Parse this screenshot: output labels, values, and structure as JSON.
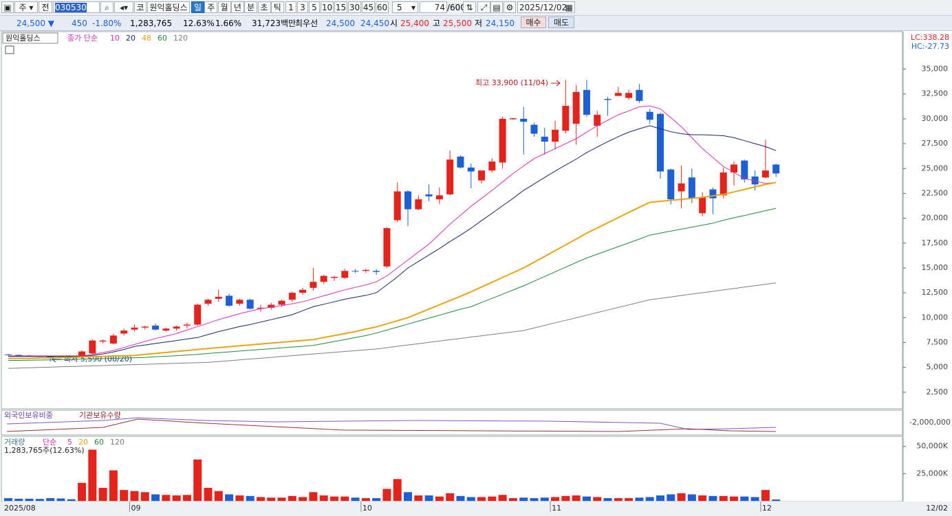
{
  "toolbar": {
    "market": "주",
    "prev": "전",
    "code": "030530",
    "exchange": "코",
    "name": "원익홀딩스",
    "periods": [
      "일",
      "주",
      "월",
      "년",
      "분",
      "초",
      "틱"
    ],
    "minutes": [
      "1",
      "3",
      "5",
      "10",
      "15",
      "30",
      "45",
      "60"
    ],
    "unit": "5",
    "count": "74",
    "count_max": "/600",
    "date": "2025/12/02"
  },
  "quote": {
    "price": "24,500 ▼",
    "change": "450",
    "change_pct": "-1.80%",
    "volume": "1,283,765",
    "turnover_pct": "12.63%",
    "ratio": "1.66%",
    "amount": "31,723백만",
    "best_label": "최우선",
    "best_ask": "24,500",
    "best_bid": "24,450",
    "open_label": "시",
    "open": "25,400",
    "high_label": "고",
    "high": "25,500",
    "low_label": "저",
    "low": "24,150",
    "buy": "매수",
    "sell": "매도"
  },
  "chart_data": [
    {
      "type": "candlestick",
      "title": "원익홀딩스",
      "lc": "LC:338.28",
      "hc": "HC:-27.73",
      "up_color": "#e5231b",
      "down_color": "#1c5fd6",
      "categories": [
        "2025/08",
        null,
        null,
        null,
        null,
        null,
        null,
        null,
        null,
        null,
        null,
        null,
        "09",
        null,
        null,
        null,
        null,
        null,
        null,
        null,
        null,
        null,
        null,
        null,
        null,
        null,
        null,
        null,
        null,
        null,
        null,
        null,
        null,
        null,
        "10",
        null,
        null,
        null,
        null,
        null,
        null,
        null,
        null,
        null,
        null,
        null,
        null,
        null,
        null,
        null,
        null,
        null,
        "11",
        null,
        null,
        null,
        null,
        null,
        null,
        null,
        null,
        null,
        null,
        null,
        null,
        null,
        null,
        null,
        null,
        null,
        null,
        null,
        "12",
        null
      ],
      "end_date": "12/02",
      "open": [
        6300,
        6250,
        6200,
        6150,
        6100,
        6100,
        6100,
        6100,
        6400,
        7600,
        7400,
        8400,
        8800,
        9000,
        9200,
        8700,
        8900,
        9200,
        9300,
        11400,
        11900,
        12200,
        11400,
        11800,
        10900,
        11000,
        11300,
        11800,
        12500,
        13000,
        13600,
        14000,
        14000,
        14700,
        14700,
        14700,
        15150,
        19800,
        22700,
        20900,
        22400,
        21900,
        22400,
        26200,
        25100,
        23800,
        24800,
        25600,
        29950,
        30000,
        29400,
        28200,
        27700,
        28800,
        29500,
        32900,
        29300,
        32000,
        32300,
        32100,
        32900,
        30700,
        30500,
        24900,
        22700,
        24100,
        20500,
        22900,
        22300,
        24600,
        25800,
        24200,
        24100,
        25400
      ],
      "high": [
        6350,
        6300,
        6250,
        6200,
        6150,
        6150,
        6150,
        6700,
        7800,
        7800,
        8400,
        8900,
        9300,
        9200,
        9400,
        9000,
        9200,
        9500,
        11400,
        11900,
        12800,
        12400,
        11900,
        11900,
        11300,
        11500,
        11800,
        12600,
        13000,
        15000,
        14300,
        14200,
        14900,
        14900,
        14900,
        14900,
        19100,
        23600,
        22800,
        22300,
        23400,
        23100,
        26800,
        26300,
        25500,
        24800,
        26000,
        30200,
        30100,
        31200,
        29600,
        29100,
        29800,
        33900,
        33400,
        33900,
        30800,
        32200,
        33200,
        32900,
        33500,
        31000,
        30600,
        25000,
        25300,
        25000,
        22600,
        23100,
        25100,
        25700,
        25900,
        24800,
        27900,
        25500
      ],
      "low": [
        6200,
        6150,
        6100,
        6050,
        5590,
        5900,
        5950,
        6000,
        6300,
        7400,
        7300,
        8200,
        8600,
        8800,
        8700,
        8600,
        8700,
        8900,
        9200,
        11200,
        11600,
        11100,
        11200,
        10800,
        10600,
        10800,
        11100,
        11600,
        12300,
        12700,
        13400,
        13700,
        13900,
        14500,
        14500,
        14300,
        15000,
        19600,
        19200,
        20800,
        21700,
        21400,
        22300,
        25000,
        23000,
        23500,
        24600,
        25000,
        29900,
        26400,
        28200,
        26400,
        26900,
        28500,
        27400,
        30200,
        28200,
        30300,
        32300,
        31900,
        31600,
        29500,
        24000,
        21400,
        21000,
        21500,
        20200,
        20400,
        22000,
        23300,
        23600,
        22800,
        24000,
        24150
      ],
      "close": [
        6250,
        6200,
        6150,
        6100,
        6000,
        6050,
        6050,
        6600,
        7700,
        7700,
        8200,
        8700,
        9000,
        9100,
        8800,
        8900,
        9100,
        9300,
        11300,
        11800,
        12100,
        11200,
        11800,
        10900,
        11000,
        11300,
        11700,
        12500,
        12800,
        13600,
        14200,
        14100,
        14700,
        14650,
        14800,
        14600,
        19000,
        22700,
        20900,
        21900,
        22200,
        22300,
        25900,
        25100,
        24700,
        24800,
        25700,
        30000,
        30050,
        29700,
        28500,
        27700,
        28900,
        31300,
        32700,
        30400,
        30400,
        31900,
        32600,
        32600,
        31800,
        29900,
        24700,
        21900,
        23500,
        22000,
        22100,
        22000,
        24600,
        25400,
        23900,
        23400,
        24800,
        24500
      ],
      "ylim": [
        900,
        38700
      ],
      "yticks": [
        {
          "value": 2500,
          "label": "2,500"
        },
        {
          "value": 5000,
          "label": "5,000"
        },
        {
          "value": 7500,
          "label": "7,500"
        },
        {
          "value": 10000,
          "label": "10,000"
        },
        {
          "value": 12500,
          "label": "12,500"
        },
        {
          "value": 15000,
          "label": "15,000"
        },
        {
          "value": 17500,
          "label": "17,500"
        },
        {
          "value": 20000,
          "label": "20,000"
        },
        {
          "value": 22500,
          "label": "22,500"
        },
        {
          "value": 25000,
          "label": "25,000"
        },
        {
          "value": 27500,
          "label": "27,500"
        },
        {
          "value": 30000,
          "label": "30,000"
        },
        {
          "value": 32500,
          "label": "32,500"
        },
        {
          "value": 35000,
          "label": "35,000"
        }
      ],
      "lines_label": "종가 단순",
      "series": [
        {
          "name": "10",
          "color": "#d630b4",
          "values": [
            6150,
            6150,
            6150,
            6150,
            6150,
            6150,
            6150,
            6150,
            6300,
            6500,
            6700,
            7000,
            7300,
            7600,
            7900,
            8150,
            8400,
            8750,
            9100,
            9450,
            9800,
            10100,
            10400,
            10650,
            10900,
            11050,
            11200,
            11400,
            11600,
            11900,
            12200,
            12500,
            12800,
            13050,
            13300,
            13600,
            14200,
            15000,
            15800,
            16600,
            17400,
            18400,
            19400,
            20300,
            21200,
            22000,
            22800,
            23650,
            24500,
            25250,
            26000,
            26500,
            27000,
            27500,
            28000,
            28650,
            29300,
            29850,
            30400,
            30800,
            31200,
            31300,
            31000,
            30100,
            29200,
            28100,
            27000,
            26100,
            25200,
            24600,
            24000,
            23750,
            23500,
            23600
          ]
        },
        {
          "name": "20",
          "color": "#17246e",
          "values": [
            6100,
            6100,
            6100,
            6100,
            6100,
            6100,
            6100,
            6100,
            6200,
            6350,
            6550,
            6800,
            7100,
            7250,
            7400,
            7550,
            7700,
            7850,
            8000,
            8300,
            8600,
            8850,
            9100,
            9300,
            9550,
            9800,
            10050,
            10300,
            10700,
            11100,
            11350,
            11600,
            11850,
            12050,
            12250,
            12500,
            13300,
            14100,
            15000,
            15650,
            16300,
            16950,
            17650,
            18300,
            19000,
            19750,
            20500,
            21250,
            22000,
            22800,
            23450,
            24100,
            24750,
            25350,
            25950,
            26600,
            27150,
            27700,
            28200,
            28650,
            29000,
            29300,
            29000,
            28700,
            28500,
            28400,
            28400,
            28350,
            28300,
            28100,
            27800,
            27500,
            27200,
            26800
          ]
        },
        {
          "name": "48",
          "color": "#e8a512",
          "values": [
            5900,
            5900,
            5900,
            5950,
            5950,
            6000,
            6000,
            6050,
            6100,
            6100,
            6150,
            6150,
            6200,
            6300,
            6400,
            6500,
            6600,
            6700,
            6800,
            6900,
            6990,
            7080,
            7170,
            7260,
            7350,
            7440,
            7530,
            7620,
            7710,
            7800,
            8000,
            8200,
            8400,
            8600,
            8850,
            9070,
            9380,
            9690,
            10000,
            10430,
            10860,
            11290,
            11720,
            12150,
            12600,
            13080,
            13560,
            14040,
            14520,
            15000,
            15580,
            16160,
            16740,
            17320,
            17900,
            18500,
            19020,
            19540,
            20060,
            20580,
            21100,
            21600,
            21700,
            21800,
            21900,
            22000,
            22100,
            22250,
            22400,
            22650,
            22900,
            23150,
            23400,
            23600
          ]
        },
        {
          "name": "60",
          "color": "#1f8a3c",
          "values": [
            5700,
            5700,
            5720,
            5740,
            5760,
            5780,
            5800,
            5820,
            5850,
            5880,
            5910,
            5940,
            5970,
            6000,
            6060,
            6120,
            6180,
            6240,
            6300,
            6400,
            6480,
            6560,
            6640,
            6720,
            6800,
            6880,
            6960,
            7040,
            7120,
            7200,
            7400,
            7600,
            7800,
            8000,
            8200,
            8450,
            8750,
            9050,
            9350,
            9650,
            9950,
            10250,
            10550,
            10850,
            11100,
            11520,
            11940,
            12360,
            12780,
            13200,
            13670,
            14140,
            14610,
            15080,
            15550,
            16000,
            16380,
            16760,
            17140,
            17520,
            17900,
            18300,
            18500,
            18700,
            18900,
            19100,
            19300,
            19500,
            19800,
            20040,
            20280,
            20520,
            20760,
            21000
          ]
        },
        {
          "name": "120",
          "color": "#7d7d7d",
          "values": [
            4900,
            4930,
            4960,
            4990,
            5020,
            5060,
            5090,
            5120,
            5150,
            5180,
            5220,
            5250,
            5280,
            5310,
            5340,
            5370,
            5410,
            5440,
            5470,
            5500,
            5580,
            5670,
            5750,
            5840,
            5920,
            6010,
            6090,
            6180,
            6260,
            6350,
            6430,
            6510,
            6600,
            6680,
            6770,
            6850,
            6980,
            7120,
            7250,
            7380,
            7510,
            7650,
            7780,
            7910,
            8050,
            8180,
            8310,
            8440,
            8570,
            8700,
            8960,
            9220,
            9480,
            9730,
            9990,
            10250,
            10510,
            10770,
            11030,
            11280,
            11540,
            11800,
            11940,
            12080,
            12230,
            12370,
            12510,
            12650,
            12790,
            12930,
            13080,
            13220,
            13360,
            13500
          ]
        }
      ],
      "annotations": {
        "high": "최고 33,900 (11/04)",
        "low": "최저 5,590 (08/20)"
      }
    },
    {
      "type": "bar",
      "title": "거래량",
      "legend_label": "단순",
      "info": "1,283,765주(12.63%)",
      "values": [
        2500,
        2000,
        2000,
        1800,
        2500,
        2200,
        1500,
        16500,
        47000,
        12000,
        28000,
        10000,
        9000,
        8000,
        6000,
        5500,
        5000,
        5500,
        38000,
        12000,
        9000,
        6000,
        5000,
        4500,
        3500,
        3000,
        3000,
        4500,
        3500,
        8000,
        5000,
        4000,
        4000,
        3000,
        2500,
        2500,
        11000,
        20000,
        8000,
        5000,
        5000,
        4000,
        7000,
        4500,
        3500,
        3500,
        4000,
        5500,
        2500,
        3000,
        2500,
        3000,
        3500,
        4500,
        5000,
        4000,
        3500,
        2500,
        2500,
        2500,
        3000,
        3500,
        5000,
        6000,
        7000,
        6000,
        5000,
        4500,
        4500,
        4000,
        4000,
        3500,
        10000,
        1284
      ],
      "ylim": [
        0,
        58000
      ],
      "yticks": [
        {
          "value": 25000,
          "label": "25,000K"
        },
        {
          "value": 50000,
          "label": "50,000K"
        }
      ],
      "series": [
        {
          "name": "5",
          "color": "#d630b4"
        },
        {
          "name": "20",
          "color": "#e8a512"
        },
        {
          "name": "60",
          "color": "#1f8a3c"
        },
        {
          "name": "120",
          "color": "#7d7d7d"
        }
      ]
    }
  ],
  "indicators": {
    "names": [
      "외국인보유비중",
      "기관보유수량"
    ],
    "tick": {
      "value": -2000000,
      "label": "-2,000,000"
    }
  }
}
